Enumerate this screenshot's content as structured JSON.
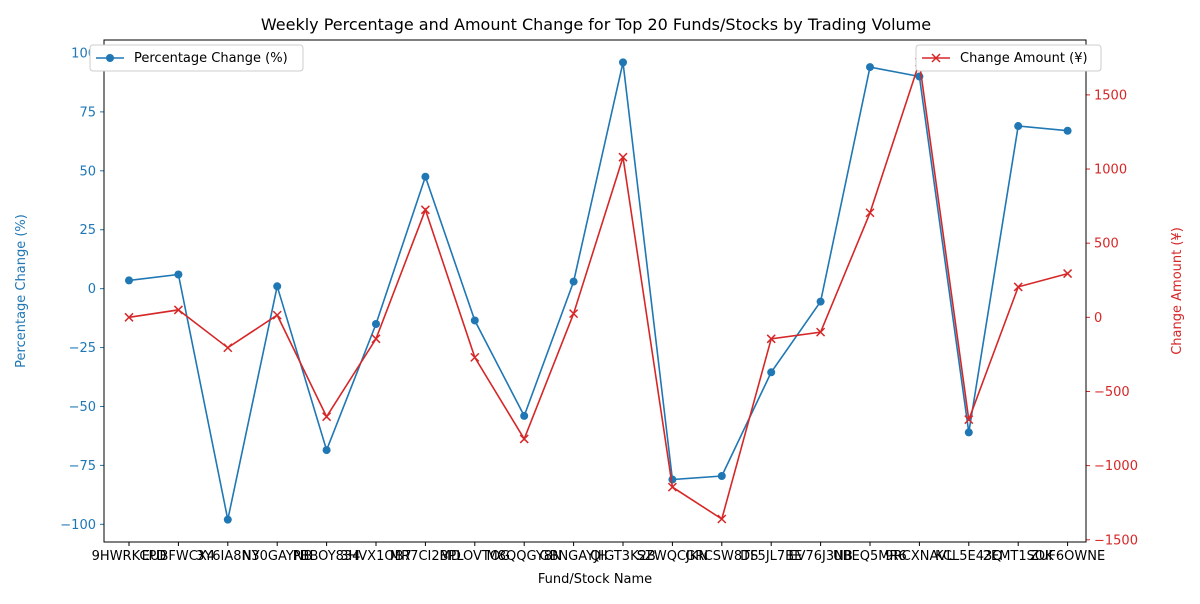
{
  "chart_data": {
    "type": "line",
    "title": "Weekly Percentage and Amount Change for Top 20 Funds/Stocks by Trading Volume",
    "xlabel": "Fund/Stock Name",
    "categories": [
      "9HWRKCPD",
      "EUBFWCX4",
      "3Y6IA8N3",
      "NY0GAYNB",
      "PBBOY834",
      "3HVX1OB7",
      "MR7CI2MD",
      "BPLOVTOG",
      "M8QQGY8N",
      "GBNGAYJH",
      "QIGT3K2B",
      "SZWQCJKN",
      "GRCSW8TS",
      "DF5JL7BE",
      "EV76J3NB",
      "UBEQ5MR6",
      "9RCXNAVL",
      "KCL5E43Q",
      "2EMT1SOK",
      "ZUF6OWNE"
    ],
    "series": [
      {
        "name": "Percentage Change (%)",
        "axis": "left",
        "color": "#1f77b4",
        "marker": "circle",
        "values": [
          3.5,
          6.0,
          -98.0,
          1.0,
          -68.5,
          -15.0,
          47.5,
          -13.5,
          -54.0,
          3.0,
          96.0,
          -81.0,
          -79.5,
          -35.5,
          -5.5,
          94.0,
          90.0,
          -61.0,
          69.0,
          67.0
        ]
      },
      {
        "name": "Change Amount (¥)",
        "axis": "right",
        "color": "#d62728",
        "marker": "x",
        "values": [
          0,
          50,
          -205,
          15,
          -670,
          -145,
          725,
          -270,
          -820,
          25,
          1080,
          -1145,
          -1360,
          -145,
          -100,
          705,
          1720,
          -690,
          205,
          295
        ]
      }
    ],
    "left_axis": {
      "label": "Percentage Change (%)",
      "ylim": [
        -107.5,
        105.5
      ],
      "ticks": [
        -100,
        -75,
        -50,
        -25,
        0,
        25,
        50,
        75,
        100
      ],
      "color": "#1f77b4"
    },
    "right_axis": {
      "label": "Change Amount (¥)",
      "ylim": [
        -1515,
        1870
      ],
      "ticks": [
        -1500,
        -1000,
        -500,
        0,
        500,
        1000,
        1500
      ],
      "color": "#d62728"
    },
    "legends": [
      {
        "position": "upper-left",
        "entries": [
          "Percentage Change (%)"
        ]
      },
      {
        "position": "upper-right",
        "entries": [
          "Change Amount (¥)"
        ]
      }
    ],
    "grid": false
  }
}
